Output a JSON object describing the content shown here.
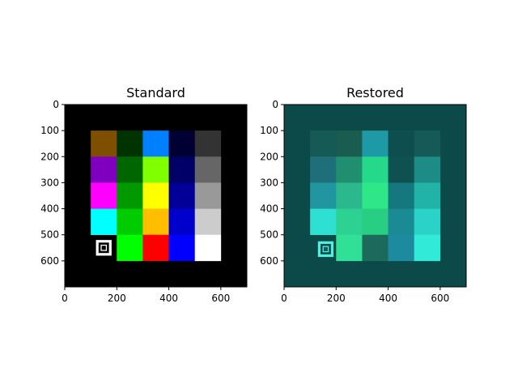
{
  "chart_data": [
    {
      "type": "image",
      "title": "Standard",
      "xlim": [
        0,
        700
      ],
      "ylim": [
        700,
        0
      ],
      "xticks": [
        0,
        200,
        400,
        600
      ],
      "yticks": [
        0,
        100,
        200,
        300,
        400,
        500,
        600
      ],
      "background": "#000000",
      "cell_size": 100,
      "grid_origin": [
        100,
        100
      ],
      "grid": [
        [
          "#7f4f00",
          "#003300",
          "#0080ff",
          "#000033",
          "#333333"
        ],
        [
          "#8000c0",
          "#006600",
          "#80ff00",
          "#000066",
          "#666666"
        ],
        [
          "#ff00ff",
          "#009900",
          "#ffff00",
          "#000099",
          "#999999"
        ],
        [
          "#00ffff",
          "#00cc00",
          "#ffbf00",
          "#0000cc",
          "#cccccc"
        ],
        [
          "marker",
          "#00ff00",
          "#ff0000",
          "#0000ff",
          "#ffffff"
        ]
      ],
      "marker": {
        "center": [
          150,
          550
        ],
        "outer_color": "#ffffff",
        "inner_color": "#000000"
      }
    },
    {
      "type": "image",
      "title": "Restored",
      "xlim": [
        0,
        700
      ],
      "ylim": [
        700,
        0
      ],
      "xticks": [
        0,
        200,
        400,
        600
      ],
      "yticks": [
        0,
        100,
        200,
        300,
        400,
        500,
        600
      ],
      "background": "#0b4a48",
      "cell_size": 100,
      "grid_origin": [
        100,
        100
      ],
      "grid": [
        [
          "#165a55",
          "#1b5c50",
          "#1e9aa6",
          "#0f4e4e",
          "#155a57"
        ],
        [
          "#1e6f7a",
          "#1f8f6f",
          "#25d98a",
          "#0f5050",
          "#1e8c86"
        ],
        [
          "#2196a0",
          "#2bb88c",
          "#2ee888",
          "#14787e",
          "#22b3a8"
        ],
        [
          "#2de0d2",
          "#2dd292",
          "#28cf82",
          "#1a8a94",
          "#2ad2c8"
        ],
        [
          "marker",
          "#30e096",
          "#1c6a5a",
          "#1e8aa0",
          "#32ead8"
        ]
      ],
      "marker": {
        "center": [
          160,
          555
        ],
        "outer_color": "#4ff0e0",
        "inner_color": "#165c58"
      }
    }
  ]
}
